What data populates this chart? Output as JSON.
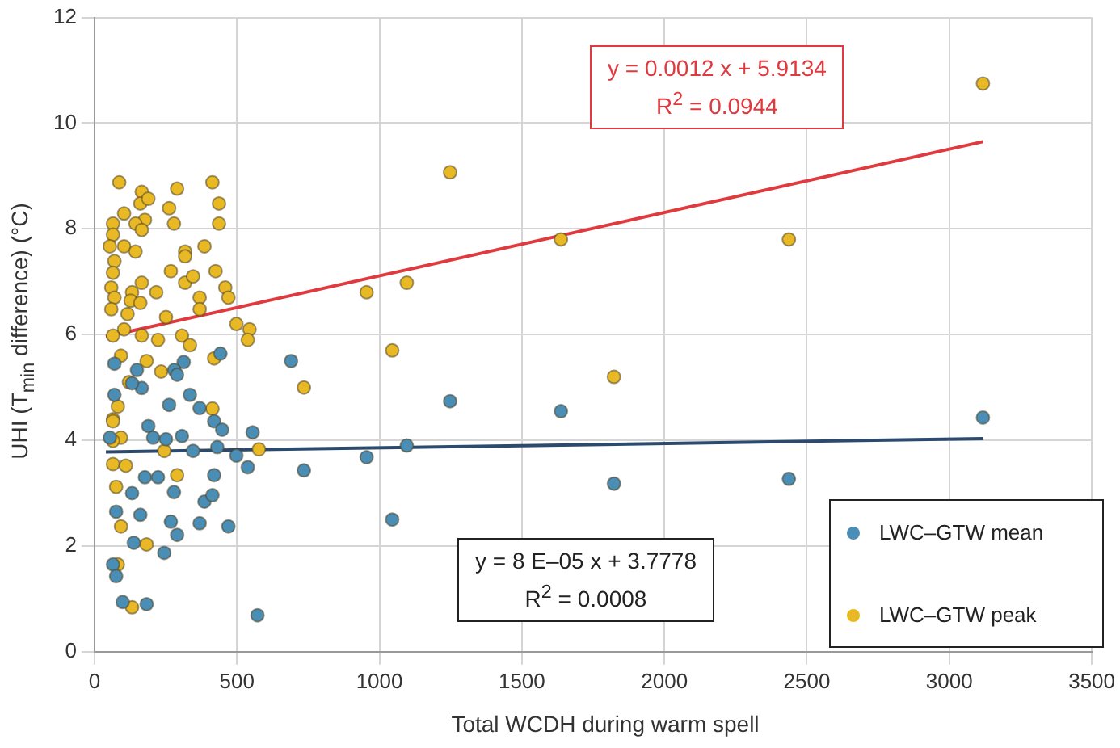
{
  "chart_data": {
    "type": "scatter",
    "xlabel": "Total WCDH during warm spell",
    "ylabel": "UHI (T$_{min}$ difference) (°C)",
    "xlim": [
      0,
      3500
    ],
    "xticks": [
      0,
      500,
      1000,
      1500,
      2000,
      2500,
      3000,
      3500
    ],
    "ylim": [
      0,
      12
    ],
    "yticks": [
      0,
      2,
      4,
      6,
      8,
      10,
      12
    ],
    "grid": true,
    "legend": "bottom right",
    "annotations": [
      "y = 0.0012 x + 5.9134",
      "R$^{2}$ = 0.0944",
      "y = 8 E–05 x + 3.7778",
      "R$^{2}$ = 0.0008"
    ],
    "series": [
      {
        "name": "LWC–GTW mean",
        "color": "#4a8db5",
        "marker": "circle",
        "x": [
          70,
          313,
          442,
          149,
          280,
          166,
          290,
          70,
          132,
          335,
          262,
          369,
          420,
          448,
          555,
          189,
          54,
          307,
          206,
          251,
          346,
          431,
          498,
          538,
          177,
          223,
          420,
          132,
          279,
          386,
          414,
          76,
          161,
          268,
          369,
          470,
          290,
          138,
          245,
          65,
          76,
          99,
          183,
          572,
          690,
          735,
          955,
          1096,
          1045,
          1248,
          1637,
          1823,
          2437,
          3118
        ],
        "values": [
          5.45,
          5.48,
          5.64,
          5.33,
          5.33,
          4.99,
          5.24,
          4.86,
          5.08,
          4.86,
          4.67,
          4.61,
          4.36,
          4.2,
          4.15,
          4.27,
          4.05,
          4.08,
          4.05,
          4.02,
          3.8,
          3.87,
          3.71,
          3.49,
          3.3,
          3.3,
          3.34,
          3.0,
          3.02,
          2.84,
          2.96,
          2.65,
          2.59,
          2.46,
          2.43,
          2.37,
          2.21,
          2.06,
          1.87,
          1.65,
          1.43,
          0.94,
          0.9,
          0.69,
          5.5,
          3.43,
          3.68,
          3.9,
          2.5,
          4.74,
          4.55,
          3.18,
          3.27,
          4.43
        ]
      },
      {
        "name": "LWC–GTW peak",
        "color": "#e8b924",
        "marker": "circle",
        "x": [
          87,
          166,
          290,
          414,
          161,
          189,
          437,
          262,
          104,
          65,
          177,
          144,
          166,
          279,
          437,
          65,
          54,
          104,
          144,
          386,
          318,
          318,
          70,
          65,
          268,
          425,
          318,
          346,
          166,
          59,
          459,
          132,
          217,
          70,
          127,
          470,
          369,
          161,
          59,
          369,
          116,
          251,
          498,
          544,
          538,
          104,
          65,
          307,
          166,
          223,
          335,
          93,
          420,
          183,
          234,
          735,
          121,
          82,
          414,
          65,
          65,
          93,
          65,
          577,
          245,
          65,
          110,
          290,
          76,
          93,
          183,
          82,
          132,
          955,
          1096,
          1045,
          1248,
          1637,
          1823,
          2437,
          3118
        ],
        "values": [
          8.88,
          8.7,
          8.76,
          8.88,
          8.48,
          8.57,
          8.48,
          8.39,
          8.29,
          8.1,
          8.17,
          8.1,
          7.98,
          8.1,
          8.1,
          7.89,
          7.67,
          7.67,
          7.57,
          7.67,
          7.57,
          7.48,
          7.39,
          7.17,
          7.2,
          7.2,
          6.98,
          7.1,
          6.98,
          6.89,
          6.89,
          6.8,
          6.8,
          6.7,
          6.64,
          6.7,
          6.7,
          6.6,
          6.48,
          6.48,
          6.39,
          6.33,
          6.2,
          6.1,
          5.9,
          6.1,
          5.98,
          5.98,
          5.98,
          5.9,
          5.8,
          5.6,
          5.55,
          5.5,
          5.3,
          5.0,
          5.1,
          4.64,
          4.6,
          4.4,
          4.36,
          4.05,
          3.99,
          3.83,
          3.8,
          3.55,
          3.52,
          3.34,
          3.12,
          2.37,
          2.03,
          1.65,
          0.84,
          6.8,
          6.98,
          5.7,
          9.07,
          7.8,
          5.2,
          7.8,
          10.75
        ]
      },
      {
        "type": "line",
        "color": "#e0393e",
        "marker": "none",
        "x": [
          40,
          3118
        ],
        "values": [
          5.96,
          9.65
        ]
      },
      {
        "type": "line",
        "color": "#2b4a6e",
        "marker": "none",
        "x": [
          40,
          3118
        ],
        "values": [
          3.78,
          4.03
        ]
      }
    ]
  }
}
